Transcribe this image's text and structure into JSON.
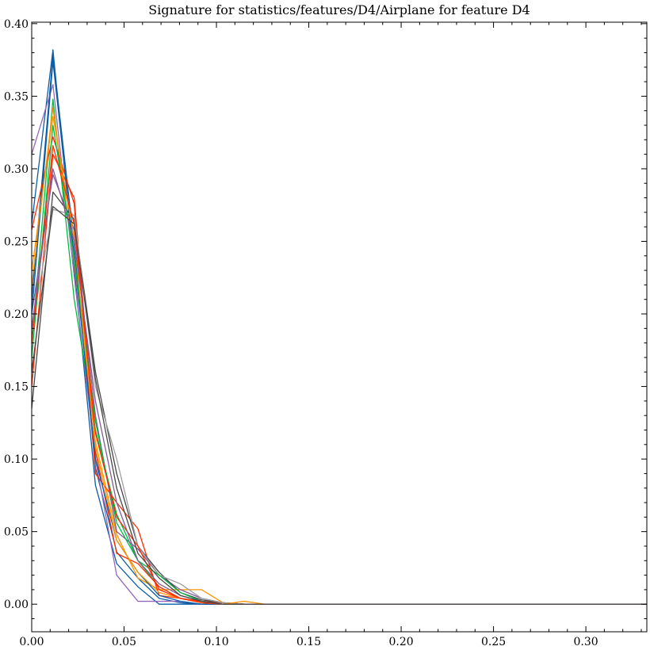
{
  "chart_data": {
    "type": "line",
    "title": "Signature for statistics/features/D4/Airplane for feature D4",
    "xlabel": "",
    "ylabel": "",
    "xlim": [
      0,
      0.333
    ],
    "ylim": [
      -0.019,
      0.401
    ],
    "xticks": [
      0.0,
      0.05,
      0.1,
      0.15,
      0.2,
      0.25,
      0.3
    ],
    "xtick_labels": [
      "0.00",
      "0.05",
      "0.10",
      "0.15",
      "0.20",
      "0.25",
      "0.30"
    ],
    "yticks": [
      0.0,
      0.05,
      0.1,
      0.15,
      0.2,
      0.25,
      0.3,
      0.35,
      0.4
    ],
    "ytick_labels": [
      "0.00",
      "0.05",
      "0.10",
      "0.15",
      "0.20",
      "0.25",
      "0.30",
      "0.35",
      "0.40"
    ],
    "grid": false,
    "legend": "none",
    "x": [
      0.0,
      0.0115,
      0.023,
      0.0345,
      0.046,
      0.0575,
      0.069,
      0.0805,
      0.092,
      0.1035,
      0.115,
      0.1265,
      0.138,
      0.1495,
      0.161,
      0.1725,
      0.184,
      0.1955,
      0.207,
      0.2185,
      0.23,
      0.2415,
      0.253,
      0.2645,
      0.276,
      0.2875,
      0.299,
      0.3105,
      0.322,
      0.333
    ],
    "series": [
      {
        "color": "#0C5DA5",
        "values": [
          0.262,
          0.382,
          0.232,
          0.082,
          0.028,
          0.012,
          0.0,
          0.0,
          0.0,
          0.0,
          0.0,
          0.0,
          0.0,
          0.0,
          0.0,
          0.0,
          0.0,
          0.0,
          0.0,
          0.0,
          0.0,
          0.0,
          0.0,
          0.0,
          0.0,
          0.0,
          0.0,
          0.0,
          0.0,
          0.0
        ]
      },
      {
        "color": "#0C5DA5",
        "values": [
          0.21,
          0.378,
          0.248,
          0.094,
          0.036,
          0.018,
          0.004,
          0.001,
          0.0,
          0.0,
          0.0,
          0.0,
          0.0,
          0.0,
          0.0,
          0.0,
          0.0,
          0.0,
          0.0,
          0.0,
          0.0,
          0.0,
          0.0,
          0.0,
          0.0,
          0.0,
          0.0,
          0.0,
          0.0,
          0.0
        ]
      },
      {
        "color": "#9467bd",
        "values": [
          0.31,
          0.358,
          0.226,
          0.1,
          0.02,
          0.002,
          0.002,
          0.002,
          0.0,
          0.0,
          0.0,
          0.0,
          0.0,
          0.0,
          0.0,
          0.0,
          0.0,
          0.0,
          0.0,
          0.0,
          0.0,
          0.0,
          0.0,
          0.0,
          0.0,
          0.0,
          0.0,
          0.0,
          0.0,
          0.0
        ]
      },
      {
        "color": "#00B945",
        "values": [
          0.18,
          0.348,
          0.21,
          0.12,
          0.062,
          0.03,
          0.012,
          0.004,
          0.001,
          0.0,
          0.0,
          0.0,
          0.0,
          0.0,
          0.0,
          0.0,
          0.0,
          0.0,
          0.0,
          0.0,
          0.0,
          0.0,
          0.0,
          0.0,
          0.0,
          0.0,
          0.0,
          0.0,
          0.0,
          0.0
        ]
      },
      {
        "color": "#FF9500",
        "values": [
          0.22,
          0.342,
          0.236,
          0.112,
          0.048,
          0.018,
          0.01,
          0.01,
          0.01,
          0.001,
          0.0,
          0.0,
          0.0,
          0.0,
          0.0,
          0.0,
          0.0,
          0.0,
          0.0,
          0.0,
          0.0,
          0.0,
          0.0,
          0.0,
          0.0,
          0.0,
          0.0,
          0.0,
          0.0,
          0.0
        ]
      },
      {
        "color": "#FF2C00",
        "values": [
          0.258,
          0.322,
          0.276,
          0.09,
          0.07,
          0.052,
          0.006,
          0.004,
          0.002,
          0.001,
          0.0,
          0.0,
          0.0,
          0.0,
          0.0,
          0.0,
          0.0,
          0.0,
          0.0,
          0.0,
          0.0,
          0.0,
          0.0,
          0.0,
          0.0,
          0.0,
          0.0,
          0.0,
          0.0,
          0.0
        ]
      },
      {
        "color": "#FF2C00",
        "values": [
          0.15,
          0.31,
          0.28,
          0.105,
          0.035,
          0.028,
          0.012,
          0.004,
          0.002,
          0.001,
          0.0,
          0.0,
          0.0,
          0.0,
          0.0,
          0.0,
          0.0,
          0.0,
          0.0,
          0.0,
          0.0,
          0.0,
          0.0,
          0.0,
          0.0,
          0.0,
          0.0,
          0.0,
          0.0,
          0.0
        ]
      },
      {
        "color": "#845B97",
        "values": [
          0.2,
          0.296,
          0.258,
          0.13,
          0.05,
          0.038,
          0.02,
          0.01,
          0.004,
          0.001,
          0.0,
          0.0,
          0.0,
          0.0,
          0.0,
          0.0,
          0.0,
          0.0,
          0.0,
          0.0,
          0.0,
          0.0,
          0.0,
          0.0,
          0.0,
          0.0,
          0.0,
          0.0,
          0.0,
          0.0
        ]
      },
      {
        "color": "#474747",
        "values": [
          0.135,
          0.284,
          0.265,
          0.16,
          0.09,
          0.04,
          0.022,
          0.008,
          0.003,
          0.001,
          0.0,
          0.0,
          0.0,
          0.0,
          0.0,
          0.0,
          0.0,
          0.0,
          0.0,
          0.0,
          0.0,
          0.0,
          0.0,
          0.0,
          0.0,
          0.0,
          0.0,
          0.0,
          0.0,
          0.0
        ]
      },
      {
        "color": "#9e9e9e",
        "values": [
          0.19,
          0.272,
          0.268,
          0.15,
          0.1,
          0.04,
          0.02,
          0.014,
          0.004,
          0.001,
          0.0,
          0.0,
          0.0,
          0.0,
          0.0,
          0.0,
          0.0,
          0.0,
          0.0,
          0.0,
          0.0,
          0.0,
          0.0,
          0.0,
          0.0,
          0.0,
          0.0,
          0.0,
          0.0,
          0.0
        ]
      },
      {
        "color": "#0C5DA5",
        "values": [
          0.2,
          0.374,
          0.24,
          0.1,
          0.044,
          0.022,
          0.006,
          0.002,
          0.0,
          0.0,
          0.0,
          0.0,
          0.0,
          0.0,
          0.0,
          0.0,
          0.0,
          0.0,
          0.0,
          0.0,
          0.0,
          0.0,
          0.0,
          0.0,
          0.0,
          0.0,
          0.0,
          0.0,
          0.0,
          0.0
        ]
      },
      {
        "color": "#00B945",
        "values": [
          0.17,
          0.33,
          0.238,
          0.126,
          0.056,
          0.03,
          0.02,
          0.008,
          0.002,
          0.0,
          0.0,
          0.0,
          0.0,
          0.0,
          0.0,
          0.0,
          0.0,
          0.0,
          0.0,
          0.0,
          0.0,
          0.0,
          0.0,
          0.0,
          0.0,
          0.0,
          0.0,
          0.0,
          0.0,
          0.0
        ]
      },
      {
        "color": "#FF9500",
        "values": [
          0.23,
          0.336,
          0.252,
          0.108,
          0.044,
          0.022,
          0.008,
          0.004,
          0.001,
          0.0,
          0.002,
          0.0,
          0.0,
          0.0,
          0.0,
          0.0,
          0.0,
          0.0,
          0.0,
          0.0,
          0.0,
          0.0,
          0.0,
          0.0,
          0.0,
          0.0,
          0.0,
          0.0,
          0.0,
          0.0
        ]
      },
      {
        "color": "#FF2C00",
        "values": [
          0.18,
          0.316,
          0.262,
          0.118,
          0.06,
          0.04,
          0.01,
          0.004,
          0.001,
          0.0,
          0.0,
          0.0,
          0.0,
          0.0,
          0.0,
          0.0,
          0.0,
          0.0,
          0.0,
          0.0,
          0.0,
          0.0,
          0.0,
          0.0,
          0.0,
          0.0,
          0.0,
          0.0,
          0.0,
          0.0
        ]
      },
      {
        "color": "#845B97",
        "values": [
          0.19,
          0.3,
          0.25,
          0.14,
          0.07,
          0.03,
          0.014,
          0.006,
          0.002,
          0.0,
          0.0,
          0.0,
          0.0,
          0.0,
          0.0,
          0.0,
          0.0,
          0.0,
          0.0,
          0.0,
          0.0,
          0.0,
          0.0,
          0.0,
          0.0,
          0.0,
          0.0,
          0.0,
          0.0,
          0.0
        ]
      },
      {
        "color": "#474747",
        "values": [
          0.16,
          0.274,
          0.262,
          0.155,
          0.08,
          0.035,
          0.018,
          0.006,
          0.002,
          0.0,
          0.0,
          0.0,
          0.0,
          0.0,
          0.0,
          0.0,
          0.0,
          0.0,
          0.0,
          0.0,
          0.0,
          0.0,
          0.0,
          0.0,
          0.0,
          0.0,
          0.0,
          0.0,
          0.0,
          0.0
        ]
      }
    ]
  }
}
